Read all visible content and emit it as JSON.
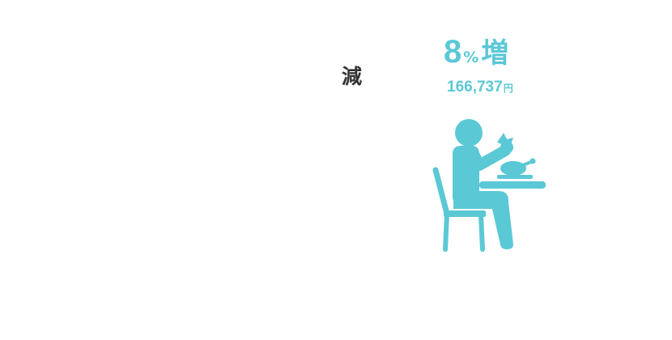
{
  "decrease_label": "減",
  "increase": {
    "percent": "8",
    "percent_sign": "%",
    "word": "増",
    "amount": "166,737",
    "unit": "円"
  },
  "icon": {
    "name": "dining-person-icon",
    "color": "#5bc8d6"
  }
}
